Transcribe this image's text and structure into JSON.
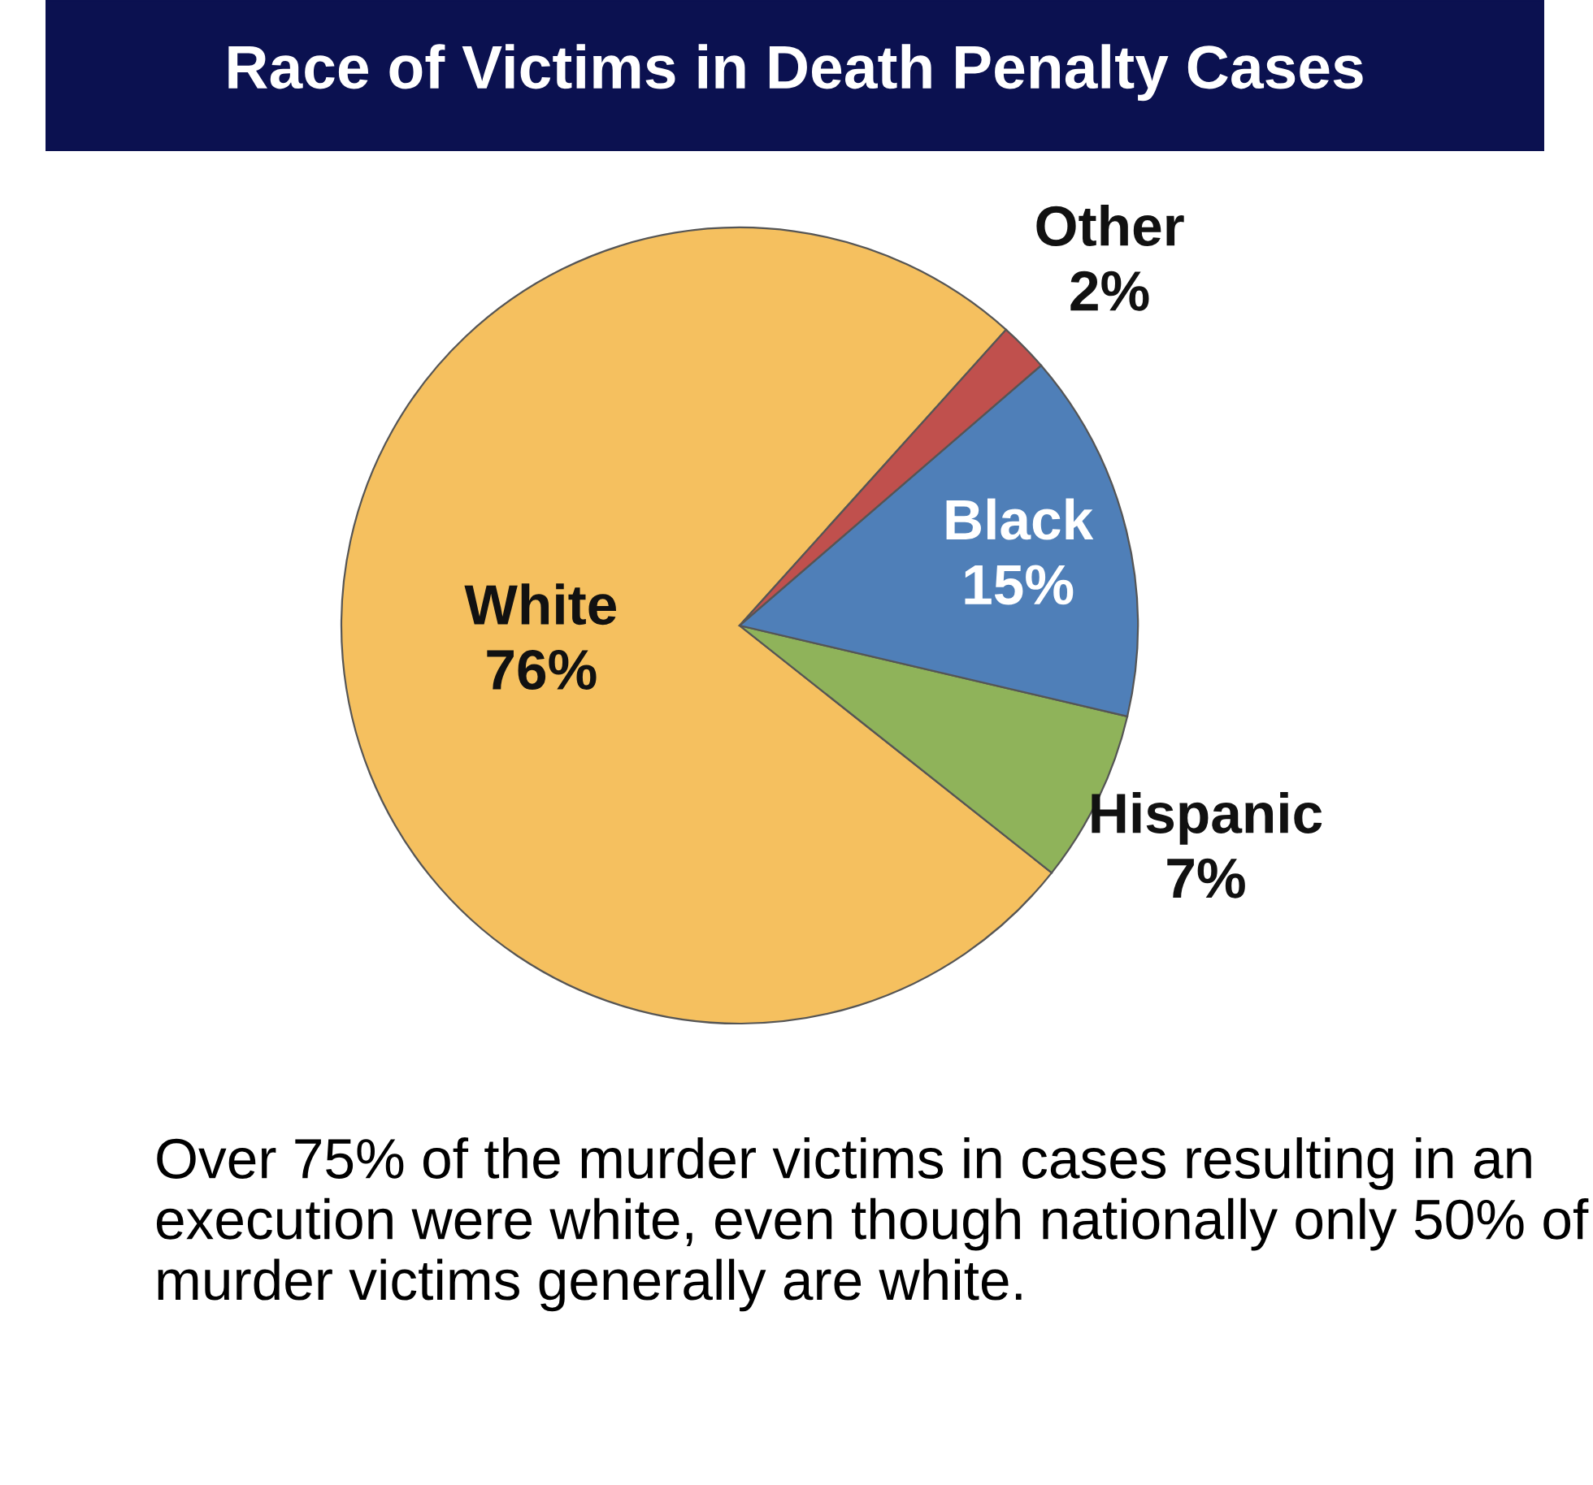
{
  "chart_data": {
    "type": "pie",
    "title": "Race of Victims in Death Penalty Cases",
    "categories": [
      "White",
      "Hispanic",
      "Black",
      "Other"
    ],
    "values": [
      76,
      7,
      15,
      2
    ],
    "colors": [
      "#f5c05f",
      "#8fb35a",
      "#4f7fb8",
      "#c0504d"
    ],
    "data_labels": true,
    "value_labels": [
      "76%",
      "7%",
      "15%",
      "2%"
    ],
    "annotations": [
      "Over 75% of the murder victims in cases resulting in an execution were white, even though nationally only 50% of murder victims generally are white."
    ]
  }
}
